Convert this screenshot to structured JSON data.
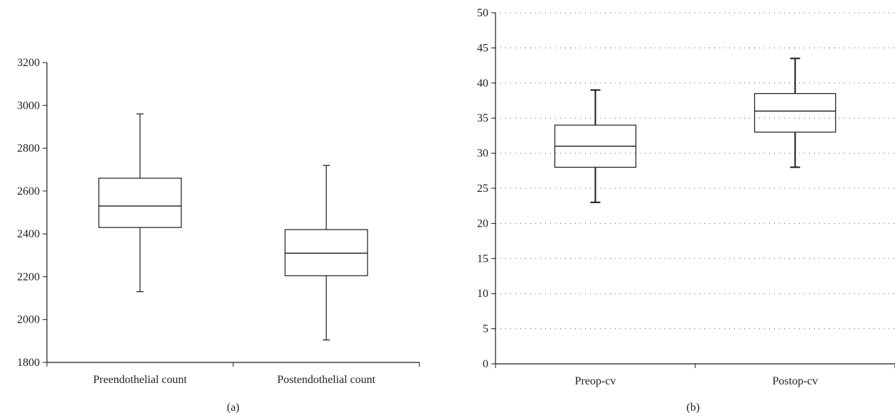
{
  "chart_data": [
    {
      "type": "box",
      "panel_label": "(a)",
      "categories": [
        "Preendothelial count",
        "Postendothelial count"
      ],
      "ylim": [
        1800,
        3200
      ],
      "yticks": [
        1800,
        2000,
        2200,
        2400,
        2600,
        2800,
        3000,
        3200
      ],
      "ytick_labels": [
        "1800",
        "2000",
        "2200",
        "2400",
        "2600",
        "2800",
        "3000",
        "3200"
      ],
      "grid": false,
      "boxes": [
        {
          "category": "Preendothelial count",
          "whisker_low": 2130,
          "q1": 2430,
          "median": 2530,
          "q3": 2660,
          "whisker_high": 2960
        },
        {
          "category": "Postendothelial count",
          "whisker_low": 1905,
          "q1": 2205,
          "median": 2310,
          "q3": 2420,
          "whisker_high": 2720
        }
      ]
    },
    {
      "type": "box",
      "panel_label": "(b)",
      "categories": [
        "Preop-cv",
        "Postop-cv"
      ],
      "ylim": [
        0,
        50
      ],
      "yticks": [
        0,
        5,
        10,
        15,
        20,
        25,
        30,
        35,
        40,
        45,
        50
      ],
      "ytick_labels": [
        "0",
        "5",
        "10",
        "15",
        "20",
        "25",
        "30",
        "35",
        "40",
        "45",
        "50"
      ],
      "grid": true,
      "boxes": [
        {
          "category": "Preop-cv",
          "whisker_low": 23,
          "q1": 28,
          "median": 31,
          "q3": 34,
          "whisker_high": 39
        },
        {
          "category": "Postop-cv",
          "whisker_low": 28,
          "q1": 33,
          "median": 36,
          "q3": 38.5,
          "whisker_high": 43.5
        }
      ]
    }
  ]
}
